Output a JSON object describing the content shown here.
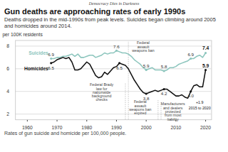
{
  "chart_data": {
    "type": "line",
    "brand": "Democracy Dies in Darkness",
    "title": "Gun deaths are approaching rates of early 1990s",
    "subtitle": "Deaths dropped in the mid-1990s from peak levels. Suicides began climbing around 2005 and homicides around 2014.",
    "caption": "Rates of gun suicide and homicide per 100,000 people.",
    "y_label": "per 100K residents",
    "x": [
      1968,
      1969,
      1970,
      1971,
      1972,
      1973,
      1974,
      1975,
      1976,
      1977,
      1978,
      1979,
      1980,
      1981,
      1982,
      1983,
      1984,
      1985,
      1986,
      1987,
      1988,
      1989,
      1990,
      1991,
      1992,
      1993,
      1994,
      1995,
      1996,
      1997,
      1998,
      1999,
      2000,
      2001,
      2002,
      2003,
      2004,
      2005,
      2006,
      2007,
      2008,
      2009,
      2010,
      2011,
      2012,
      2013,
      2014,
      2015,
      2016,
      2017,
      2018,
      2019,
      2020
    ],
    "series": [
      {
        "name": "Suicides",
        "color": "#8cc5bd",
        "values": [
          6.9,
          6.9,
          7.0,
          7.0,
          7.1,
          7.1,
          7.2,
          7.3,
          7.1,
          7.3,
          7.0,
          7.0,
          7.1,
          7.2,
          7.2,
          7.0,
          7.1,
          7.2,
          7.4,
          7.3,
          7.4,
          7.4,
          7.6,
          7.5,
          7.4,
          7.4,
          7.3,
          7.1,
          6.8,
          6.6,
          6.4,
          6.1,
          5.9,
          6.0,
          6.1,
          5.9,
          5.9,
          5.9,
          5.8,
          5.9,
          6.1,
          6.1,
          6.2,
          6.4,
          6.5,
          6.6,
          6.7,
          6.9,
          6.9,
          7.1,
          7.2,
          7.0,
          7.4
        ],
        "point_labels": [
          {
            "x": 1968,
            "text": "6.9"
          },
          {
            "x": 1990,
            "text": "7.6"
          },
          {
            "x": 2000,
            "text": "5.9"
          },
          {
            "x": 2006,
            "text": "5.8"
          },
          {
            "x": 2015,
            "text": "6.9"
          },
          {
            "x": 2020,
            "text": "7.4"
          }
        ]
      },
      {
        "name": "Homicides",
        "color": "#111111",
        "values": [
          6.5,
          6.6,
          6.8,
          6.9,
          7.0,
          6.9,
          7.0,
          6.6,
          5.9,
          5.9,
          6.0,
          6.3,
          6.6,
          6.4,
          5.9,
          5.4,
          5.2,
          5.3,
          5.7,
          5.5,
          5.8,
          6.1,
          6.2,
          6.5,
          6.4,
          6.3,
          6.0,
          5.5,
          5.0,
          4.6,
          4.2,
          3.9,
          3.8,
          3.9,
          4.0,
          4.1,
          4.0,
          4.1,
          4.2,
          4.2,
          4.0,
          3.8,
          3.6,
          3.6,
          3.7,
          3.5,
          3.4,
          4.0,
          4.5,
          4.6,
          4.4,
          4.4,
          5.9
        ],
        "point_labels": [
          {
            "x": 1968,
            "text": "6.5"
          },
          {
            "x": 1991,
            "text": "6.5"
          },
          {
            "x": 2000,
            "text": "3.8"
          },
          {
            "x": 2006,
            "text": "4.2"
          },
          {
            "x": 2015,
            "text": "4.0"
          },
          {
            "x": 2020,
            "text": "5.9"
          }
        ]
      }
    ],
    "events": [
      {
        "year": 1994,
        "x": 1999,
        "y": 8.4,
        "text": "Federal assault weapons ban"
      },
      {
        "year": 1993,
        "x": 1985,
        "y": 4.7,
        "text": "Federal Brady law for nationwide background checks"
      },
      {
        "year": 2004,
        "x": 1998,
        "y": 3.2,
        "text": "Federal assault weapons ban expired"
      },
      {
        "year": 2005,
        "x": 2009,
        "y": 3.0,
        "text": "Manufacturers and dealers protected from most liability"
      }
    ],
    "notes": [
      {
        "x": 2018,
        "y": 3.0,
        "text": "+1.9"
      },
      {
        "x": 2018,
        "y": 2.5,
        "text": "2015 to 2020"
      }
    ],
    "xlim": [
      1956,
      2022
    ],
    "xticks": [
      1960,
      1970,
      1980,
      1990,
      2000,
      2010,
      2020
    ],
    "ylim": [
      1.5,
      8.5
    ],
    "yticks": [
      2,
      4,
      6,
      8
    ],
    "grid": true
  }
}
